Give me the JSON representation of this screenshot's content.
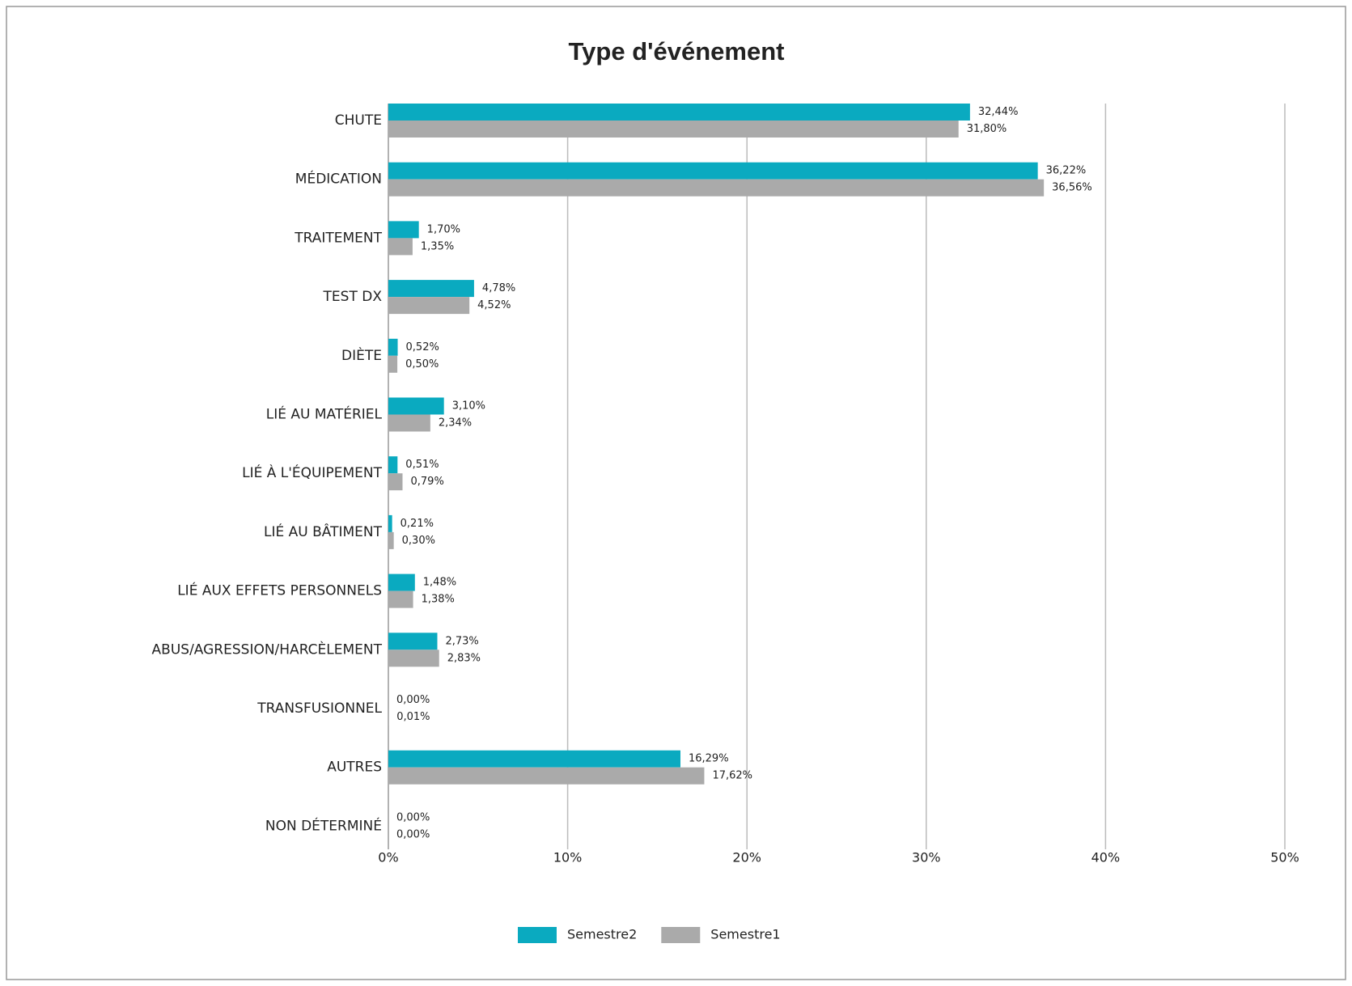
{
  "chart_data": {
    "type": "hbar",
    "title": "Type d'événement",
    "categories": [
      "CHUTE",
      "MÉDICATION",
      "TRAITEMENT",
      "TEST DX",
      "DIÈTE",
      "LIÉ AU MATÉRIEL",
      "LIÉ À L'ÉQUIPEMENT",
      "LIÉ AU BÂTIMENT",
      "LIÉ AUX EFFETS PERSONNELS",
      "ABUS/AGRESSION/HARCÈLEMENT",
      "TRANSFUSIONNEL",
      "AUTRES",
      "NON DÉTERMINÉ"
    ],
    "series": [
      {
        "name": "Semestre2",
        "color": "#0aaac0",
        "values": [
          32.44,
          36.22,
          1.7,
          4.78,
          0.52,
          3.1,
          0.51,
          0.21,
          1.48,
          2.73,
          0.0,
          16.29,
          0.0
        ],
        "value_labels": [
          "32,44%",
          "36,22%",
          "1,70%",
          "4,78%",
          "0,52%",
          "3,10%",
          "0,51%",
          "0,21%",
          "1,48%",
          "2,73%",
          "0,00%",
          "16,29%",
          "0,00%"
        ]
      },
      {
        "name": "Semestre1",
        "color": "#aaaaaa",
        "values": [
          31.8,
          36.56,
          1.35,
          4.52,
          0.5,
          2.34,
          0.79,
          0.3,
          1.38,
          2.83,
          0.01,
          17.62,
          0.0
        ],
        "value_labels": [
          "31,80%",
          "36,56%",
          "1,35%",
          "4,52%",
          "0,50%",
          "2,34%",
          "0,79%",
          "0,30%",
          "1,38%",
          "2,83%",
          "0,01%",
          "17,62%",
          "0,00%"
        ]
      }
    ],
    "xlim": [
      0,
      50
    ],
    "xticks": [
      {
        "value": 0,
        "label": "0%"
      },
      {
        "value": 10,
        "label": "10%"
      },
      {
        "value": 20,
        "label": "20%"
      },
      {
        "value": 30,
        "label": "30%"
      },
      {
        "value": 40,
        "label": "40%"
      },
      {
        "value": 50,
        "label": "50%"
      }
    ],
    "grid": true,
    "legend": "bottom"
  }
}
